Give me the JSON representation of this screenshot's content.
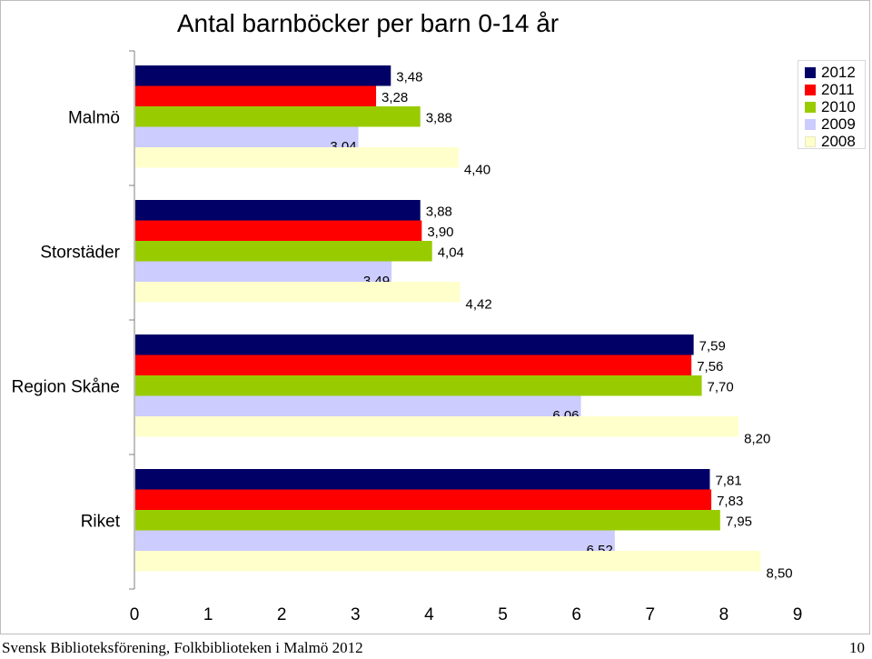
{
  "chart_data": {
    "type": "bar",
    "orientation": "horizontal",
    "title": "Antal barnböcker per barn 0-14 år",
    "categories": [
      "Malmö",
      "Storstäder",
      "Region Skåne",
      "Riket"
    ],
    "series": [
      {
        "name": "2012",
        "color": "#000066",
        "values": [
          3.48,
          3.88,
          7.59,
          7.81
        ],
        "labels": [
          "3,48",
          "3,88",
          "7,59",
          "7,81"
        ]
      },
      {
        "name": "2011",
        "color": "#ff0000",
        "values": [
          3.28,
          3.9,
          7.56,
          7.83
        ],
        "labels": [
          "3,28",
          "3,90",
          "7,56",
          "7,83"
        ]
      },
      {
        "name": "2010",
        "color": "#99cc00",
        "values": [
          3.88,
          4.04,
          7.7,
          7.95
        ],
        "labels": [
          "3,88",
          "4,04",
          "7,70",
          "7,95"
        ]
      },
      {
        "name": "2009",
        "color": "#ccccff",
        "values": [
          3.04,
          3.49,
          6.06,
          6.52
        ],
        "labels": [
          "3,04",
          "3,49",
          "6,06",
          "6,52"
        ]
      },
      {
        "name": "2008",
        "color": "#ffffcc",
        "values": [
          4.4,
          4.42,
          8.2,
          8.5
        ],
        "labels": [
          "4,40",
          "4,42",
          "8,20",
          "8,50"
        ]
      }
    ],
    "xlim": [
      0,
      9
    ],
    "xticks": [
      "0",
      "1",
      "2",
      "3",
      "4",
      "5",
      "6",
      "7",
      "8",
      "9"
    ],
    "grid": false,
    "legend_position": "top-right"
  },
  "footer": {
    "source": "Svensk Biblioteksförening, Folkbiblioteken i Malmö 2012",
    "page_number": "10"
  }
}
